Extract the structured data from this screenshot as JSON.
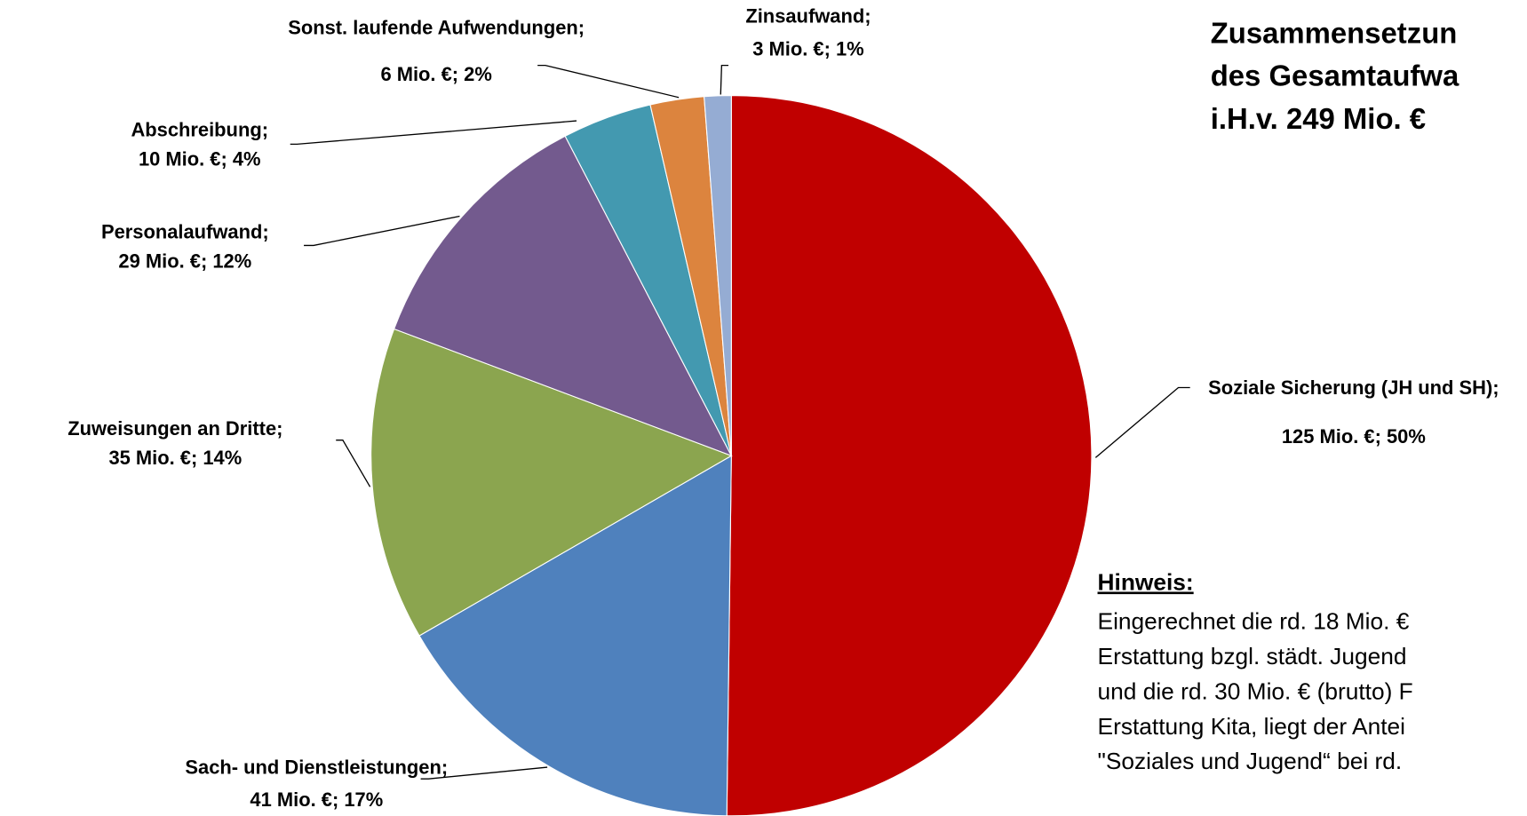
{
  "chart_data": {
    "type": "pie",
    "title_lines": [
      "Zusammensetzun",
      "des Gesamtaufwa",
      "i.H.v. 249 Mio. €"
    ],
    "categories": [
      "Soziale Sicherung (JH und SH);",
      "Sach- und Dienstleistungen;",
      "Zuweisungen an Dritte;",
      "Personalaufwand;",
      "Abschreibung;",
      "Sonst. laufende Aufwendungen;",
      "Zinsaufwand;"
    ],
    "values": [
      125,
      41,
      35,
      29,
      10,
      6,
      3
    ],
    "value_labels": [
      "125 Mio. €; 50%",
      "41 Mio. €; 17%",
      "35 Mio. €; 14%",
      "29 Mio. €; 12%",
      "10 Mio. €; 4%",
      "6 Mio. €; 2%",
      "3 Mio. €; 1%"
    ],
    "colors": [
      "#c00000",
      "#4f81bd",
      "#8ba54f",
      "#735a8e",
      "#4399b0",
      "#dc843e",
      "#95acd3"
    ]
  },
  "note": {
    "heading": "Hinweis:",
    "lines": [
      "Eingerechnet die rd. 18 Mio. €",
      "Erstattung bzgl. städt. Jugend",
      "und die rd. 30 Mio. € (brutto) F",
      "Erstattung Kita, liegt der Antei",
      "\"Soziales und Jugend“ bei rd."
    ]
  }
}
